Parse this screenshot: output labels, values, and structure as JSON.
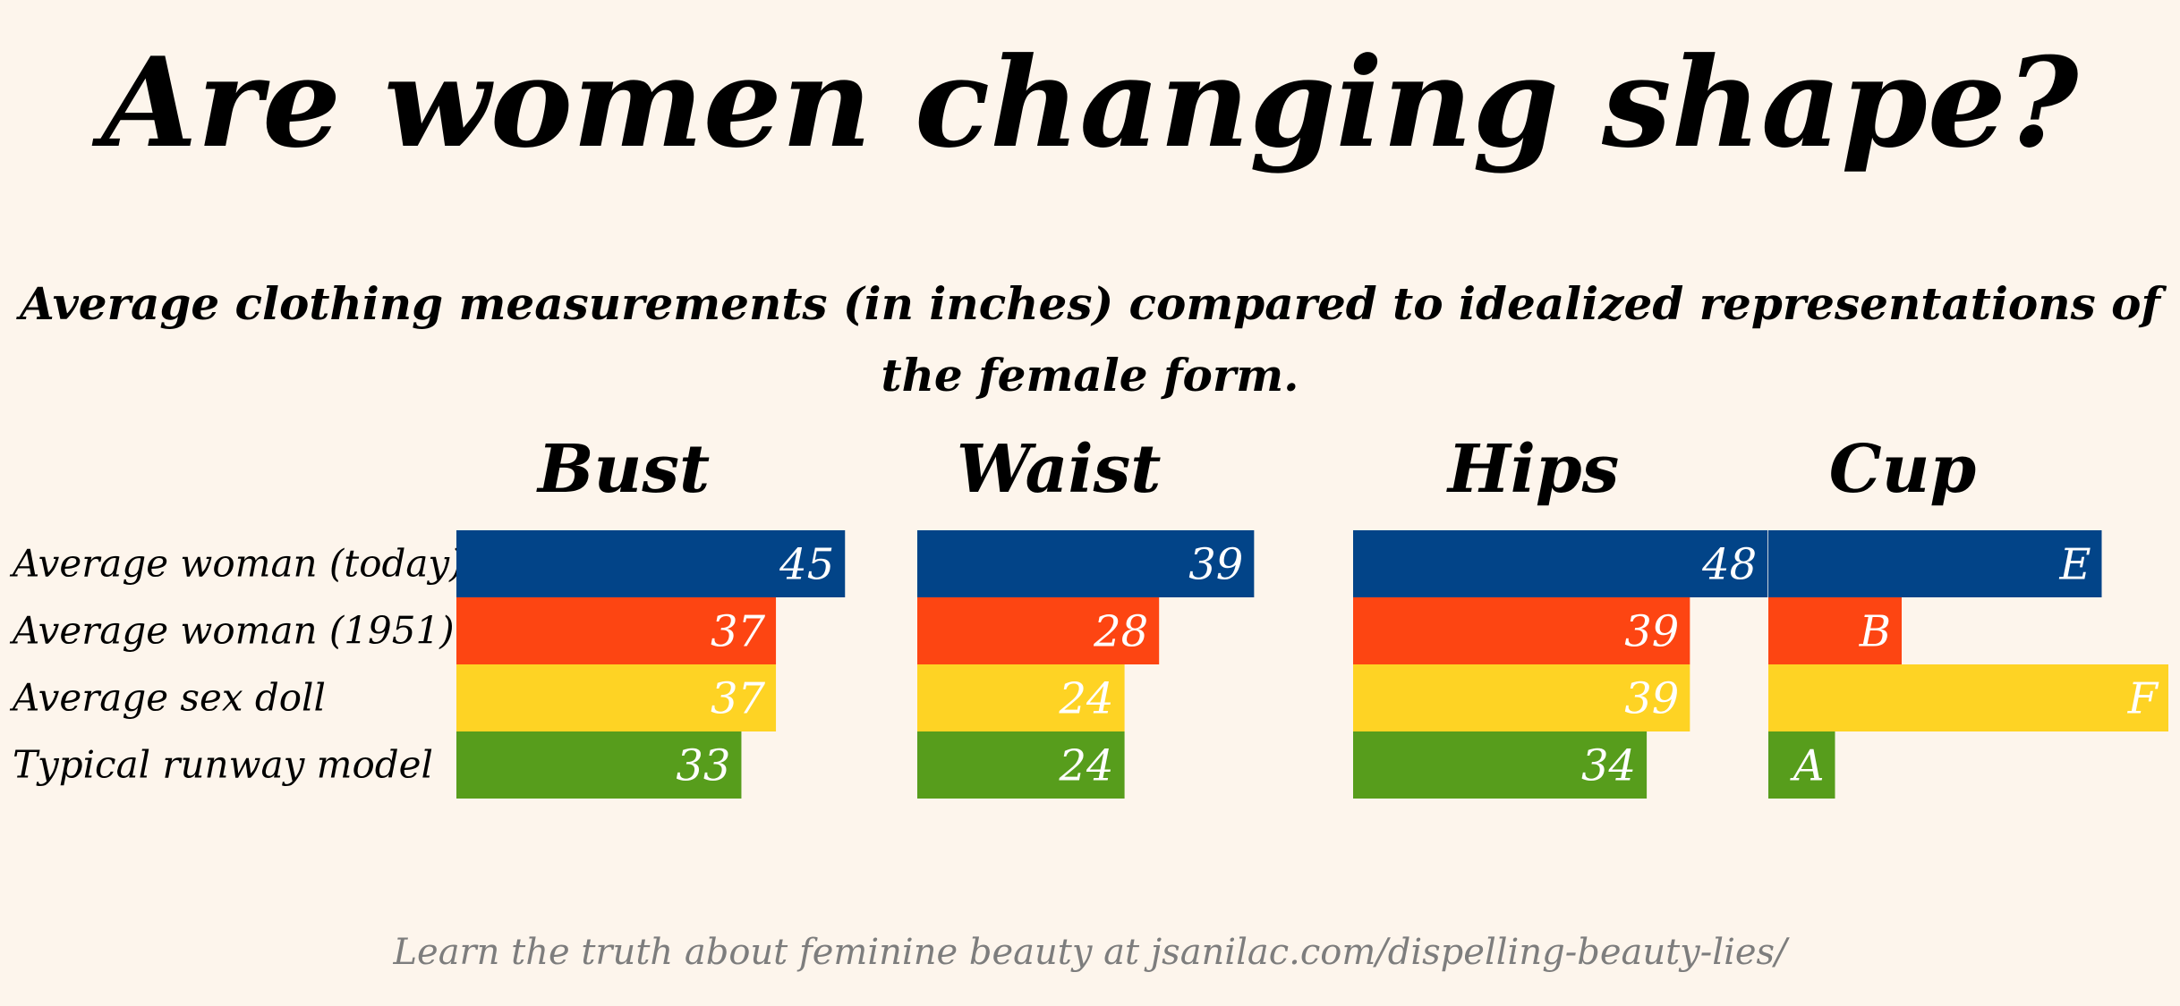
{
  "title": "Are women changing shape?",
  "subtitle": "Average clothing measurements (in inches) compared to idealized representations of the female form.",
  "footer": "Learn the truth about feminine beauty at jsanilac.com/dispelling-beauty-lies/",
  "colors": {
    "background": "#fdf5ec",
    "average_today": "#024488",
    "average_1951": "#fd4512",
    "sex_doll": "#fed324",
    "runway_model": "#579d1c",
    "footer_text": "#7d7d7d"
  },
  "chart_data": {
    "type": "bar",
    "orientation": "horizontal",
    "categories": [
      "Average woman (today)",
      "Average woman (1951)",
      "Average sex doll",
      "Typical runway model"
    ],
    "panels": [
      {
        "name": "Bust",
        "values": [
          45,
          37,
          37,
          33
        ],
        "labels": [
          "45",
          "37",
          "37",
          "33"
        ]
      },
      {
        "name": "Waist",
        "values": [
          39,
          28,
          24,
          24
        ],
        "labels": [
          "39",
          "28",
          "24",
          "24"
        ]
      },
      {
        "name": "Hips",
        "values": [
          48,
          39,
          39,
          34
        ],
        "labels": [
          "48",
          "39",
          "39",
          "34"
        ]
      },
      {
        "name": "Cup",
        "values": [
          5,
          2,
          6,
          1
        ],
        "labels": [
          "E",
          "B",
          "F",
          "A"
        ]
      }
    ],
    "legend": "none"
  }
}
